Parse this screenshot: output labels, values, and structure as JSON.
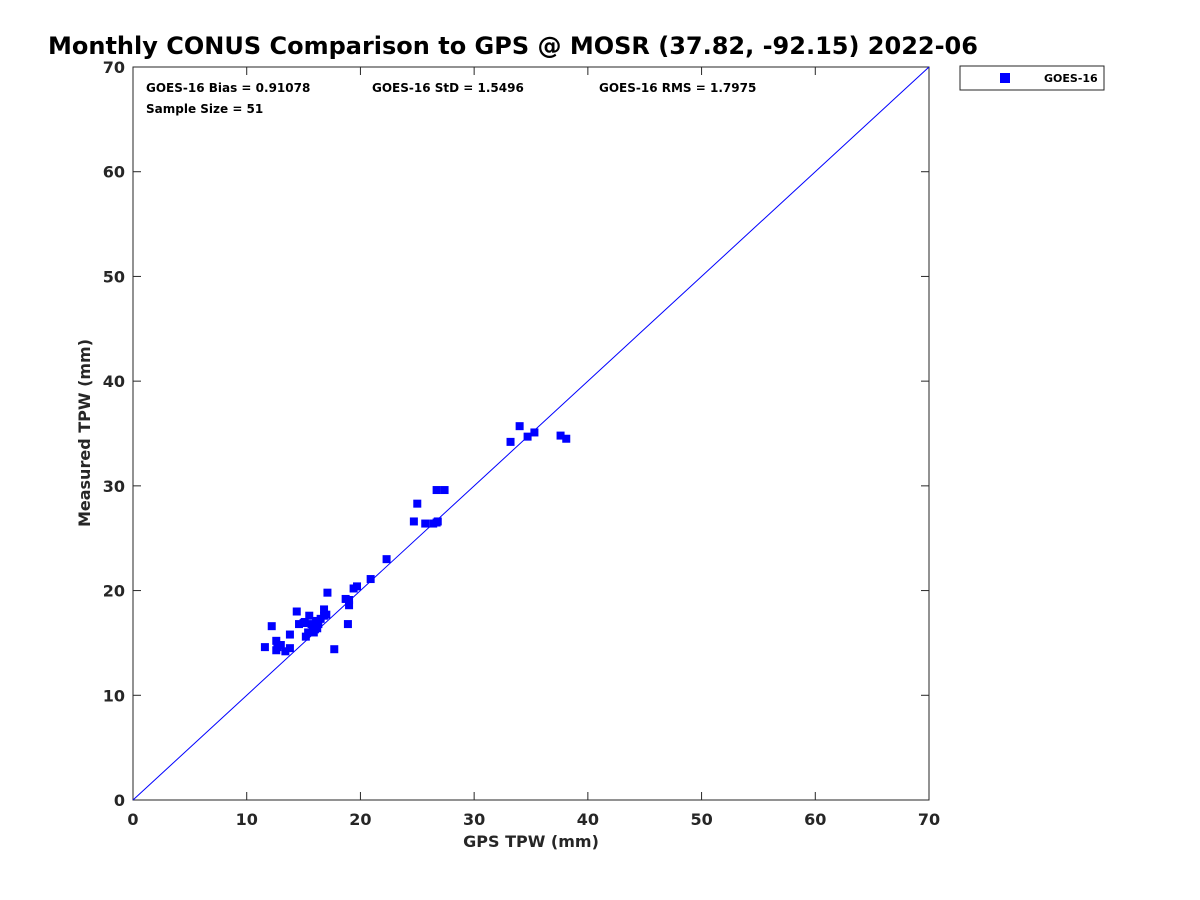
{
  "chart_data": {
    "type": "scatter",
    "title": "Monthly CONUS Comparison to GPS @ MOSR (37.82, -92.15) 2022-06",
    "xlabel": "GPS TPW (mm)",
    "ylabel": "Measured TPW (mm)",
    "xlim": [
      0,
      70
    ],
    "ylim": [
      0,
      70
    ],
    "xticks": [
      0,
      10,
      20,
      30,
      40,
      50,
      60,
      70
    ],
    "yticks": [
      0,
      10,
      20,
      30,
      40,
      50,
      60,
      70
    ],
    "xtick_labels": [
      "0",
      "10",
      "20",
      "30",
      "40",
      "50",
      "60",
      "70"
    ],
    "ytick_labels": [
      "0",
      "10",
      "20",
      "30",
      "40",
      "50",
      "60",
      "70"
    ],
    "grid": false,
    "legend_position": "outside-top-right",
    "stats": {
      "bias": "GOES-16 Bias = 0.91078",
      "std": "GOES-16 StD = 1.5496",
      "rms": "GOES-16 RMS = 1.7975",
      "sample_size": "Sample Size = 51"
    },
    "reference_line": {
      "name": "1:1 line",
      "from": [
        0,
        0
      ],
      "to": [
        70,
        70
      ],
      "color": "#0000ff"
    },
    "series": [
      {
        "name": "GOES-16",
        "color": "#0000ff",
        "marker": "square",
        "x": [
          11.6,
          12.2,
          12.6,
          12.6,
          13.0,
          13.4,
          13.8,
          13.8,
          14.4,
          14.6,
          15.1,
          15.2,
          15.4,
          15.5,
          15.7,
          15.9,
          16.0,
          16.1,
          16.3,
          16.5,
          16.8,
          16.8,
          17.0,
          17.1,
          17.7,
          18.7,
          18.9,
          19.0,
          19.0,
          19.4,
          19.7,
          20.9,
          22.3,
          24.7,
          25.0,
          25.7,
          26.4,
          26.7,
          26.7,
          26.8,
          27.4,
          33.2,
          34.0,
          34.7,
          35.3,
          37.6,
          38.1,
          15.0,
          15.8,
          16.2,
          12.7
        ],
        "y": [
          14.6,
          16.6,
          14.3,
          15.2,
          14.8,
          14.2,
          14.5,
          15.8,
          18.0,
          16.8,
          17.0,
          15.6,
          16.0,
          17.6,
          16.8,
          16.0,
          16.3,
          17.1,
          16.8,
          17.3,
          18.2,
          17.6,
          17.7,
          19.8,
          14.4,
          19.2,
          16.8,
          19.1,
          18.6,
          20.2,
          20.4,
          21.1,
          23.0,
          26.6,
          28.3,
          26.4,
          26.4,
          29.6,
          26.5,
          26.6,
          29.6,
          34.2,
          35.7,
          34.7,
          35.1,
          34.8,
          34.5,
          16.9,
          16.6,
          16.4,
          14.6
        ]
      }
    ]
  }
}
